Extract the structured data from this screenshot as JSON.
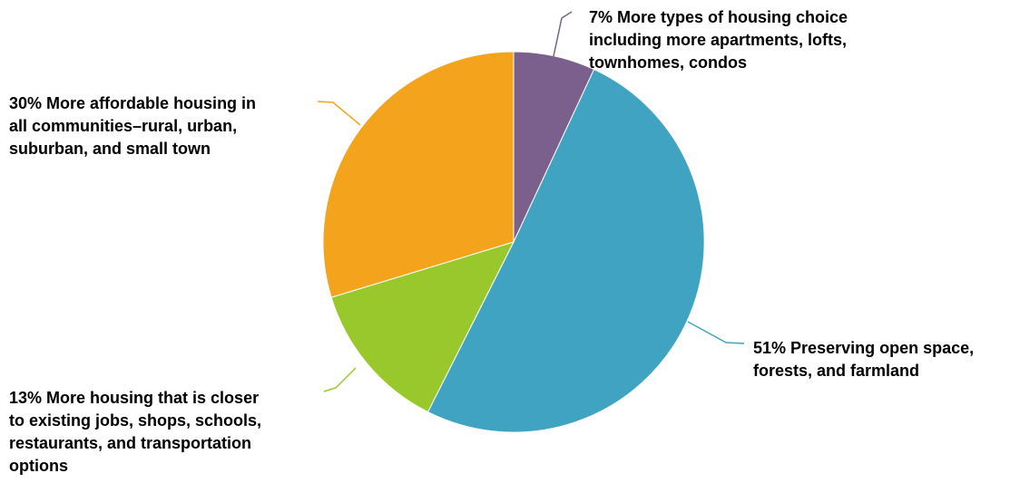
{
  "chart_data": {
    "type": "pie",
    "start_angle_deg": 0,
    "direction": "clockwise",
    "slices": [
      {
        "value": 7,
        "lines": [
          "More types of housing choice",
          "including more apartments, lofts,",
          "townhomes, condos"
        ],
        "color": "#7b5f8c"
      },
      {
        "value": 51,
        "lines": [
          "Preserving open space,",
          "forests, and farmland"
        ],
        "color": "#41a3c2"
      },
      {
        "value": 13,
        "lines": [
          "More housing that is closer",
          "to existing jobs, shops, schools,",
          "restaurants, and transportation",
          "options"
        ],
        "color": "#98c82b"
      },
      {
        "value": 30,
        "lines": [
          "More affordable housing in",
          "all communities–rural, urban,",
          "suburban, and small town"
        ],
        "color": "#f4a41c"
      }
    ]
  }
}
